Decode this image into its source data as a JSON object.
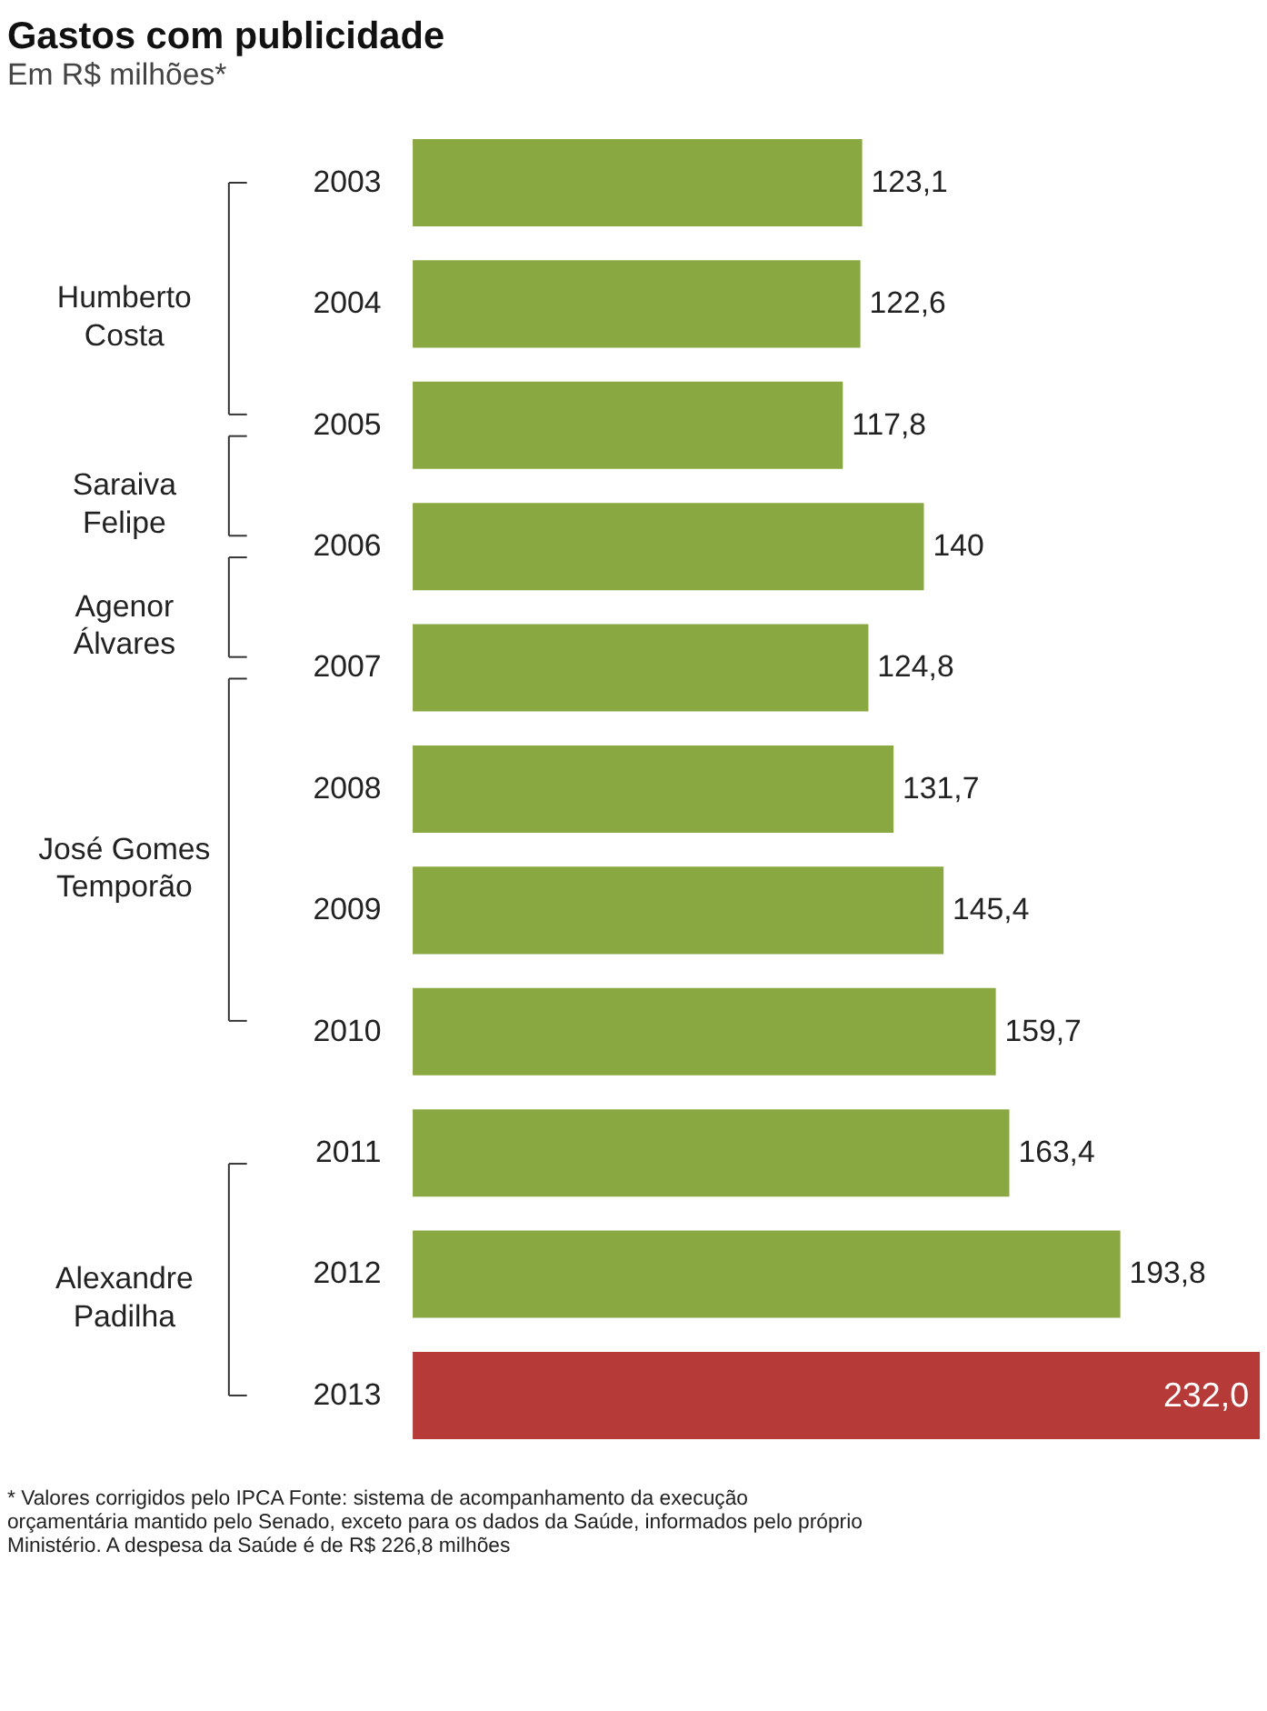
{
  "chart_data": {
    "type": "bar",
    "orientation": "horizontal",
    "title": "Gastos com publicidade",
    "subtitle": "Em R$ milhões*",
    "categories": [
      "2003",
      "2004",
      "2005",
      "2006",
      "2007",
      "2008",
      "2009",
      "2010",
      "2011",
      "2012",
      "2013"
    ],
    "values": [
      123.1,
      122.6,
      117.8,
      140,
      124.8,
      131.7,
      145.4,
      159.7,
      163.4,
      193.8,
      232.0
    ],
    "value_labels": [
      "123,1",
      "122,6",
      "117,8",
      "140",
      "124,8",
      "131,7",
      "145,4",
      "159,7",
      "163,4",
      "193,8",
      "232,0"
    ],
    "colors": [
      "#8aa842",
      "#8aa842",
      "#8aa842",
      "#8aa842",
      "#8aa842",
      "#8aa842",
      "#8aa842",
      "#8aa842",
      "#8aa842",
      "#8aa842",
      "#b53a38"
    ],
    "annotations": [
      "Humberto\nCosta",
      "Saraiva\nFelipe",
      "Agenor\nÁlvares",
      "José Gomes\nTemporão",
      "Alexandre\nPadilha",
      "* Valores corrigidos pelo IPCA    Fonte: sistema de acompanhamento da execução\norçamentária mantido pelo Senado, exceto para os dados da Saúde, informados pelo próprio\nMinistério. A despesa da Saúde é de R$ 226,8 milhões"
    ],
    "stacked": false
  }
}
